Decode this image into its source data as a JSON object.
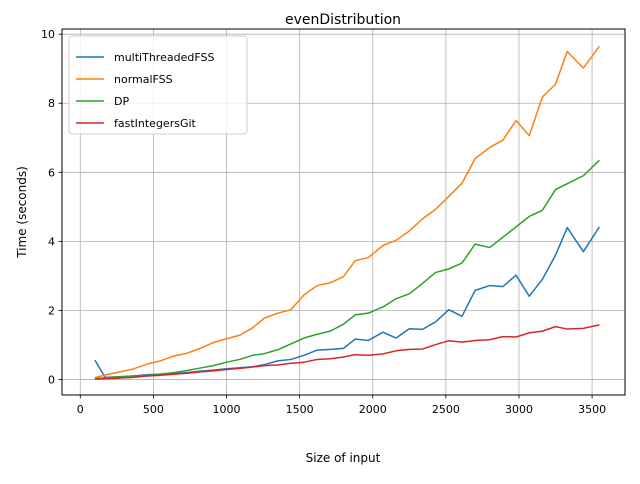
{
  "chart_data": {
    "type": "line",
    "title": "evenDistribution",
    "xlabel": "Size of input",
    "ylabel": "Time (seconds)",
    "xlim": [
      -125,
      3725
    ],
    "ylim": [
      -0.45,
      10.15
    ],
    "xticks": [
      0,
      500,
      1000,
      1500,
      2000,
      2500,
      3000,
      3500
    ],
    "yticks": [
      0,
      2,
      4,
      6,
      8,
      10
    ],
    "xtick_labels": [
      "0",
      "500",
      "1000",
      "1500",
      "2000",
      "2500",
      "3000",
      "3500"
    ],
    "ytick_labels": [
      "0",
      "2",
      "4",
      "6",
      "8",
      "10"
    ],
    "grid": true,
    "legend_position": "top-left",
    "x": [
      100,
      170,
      270,
      360,
      460,
      540,
      640,
      730,
      820,
      910,
      1000,
      1090,
      1180,
      1260,
      1350,
      1440,
      1530,
      1620,
      1710,
      1800,
      1880,
      1970,
      2070,
      2160,
      2250,
      2340,
      2430,
      2520,
      2610,
      2700,
      2800,
      2890,
      2980,
      3070,
      3160,
      3250,
      3330,
      3440,
      3550
    ],
    "series": [
      {
        "name": "multiThreadedFSS",
        "color": "#1f77b4",
        "values": [
          0.56,
          0.06,
          0.08,
          0.1,
          0.14,
          0.15,
          0.17,
          0.2,
          0.24,
          0.27,
          0.31,
          0.34,
          0.37,
          0.43,
          0.54,
          0.58,
          0.7,
          0.85,
          0.87,
          0.9,
          1.17,
          1.13,
          1.37,
          1.2,
          1.47,
          1.45,
          1.67,
          2.02,
          1.83,
          2.58,
          2.72,
          2.69,
          3.02,
          2.41,
          2.9,
          3.6,
          4.4,
          3.7,
          4.42
        ]
      },
      {
        "name": "normalFSS",
        "color": "#ff7f0e",
        "values": [
          0.05,
          0.13,
          0.22,
          0.3,
          0.45,
          0.53,
          0.68,
          0.76,
          0.9,
          1.07,
          1.18,
          1.28,
          1.5,
          1.78,
          1.92,
          2.02,
          2.45,
          2.72,
          2.8,
          2.98,
          3.44,
          3.53,
          3.88,
          4.03,
          4.3,
          4.65,
          4.93,
          5.3,
          5.68,
          6.4,
          6.72,
          6.93,
          7.5,
          7.06,
          8.18,
          8.55,
          9.5,
          9.02,
          9.65
        ]
      },
      {
        "name": "DP",
        "color": "#2ca02c",
        "values": [
          0.02,
          0.05,
          0.08,
          0.1,
          0.12,
          0.15,
          0.2,
          0.26,
          0.33,
          0.4,
          0.5,
          0.58,
          0.7,
          0.75,
          0.86,
          1.03,
          1.2,
          1.31,
          1.4,
          1.6,
          1.87,
          1.92,
          2.1,
          2.34,
          2.48,
          2.78,
          3.1,
          3.2,
          3.37,
          3.92,
          3.82,
          4.12,
          4.42,
          4.72,
          4.9,
          5.5,
          5.67,
          5.9,
          6.35
        ]
      },
      {
        "name": "fastIntegersGit",
        "color": "#d62728",
        "values": [
          0.01,
          0.02,
          0.04,
          0.06,
          0.1,
          0.12,
          0.15,
          0.18,
          0.22,
          0.25,
          0.29,
          0.32,
          0.36,
          0.4,
          0.42,
          0.47,
          0.5,
          0.58,
          0.6,
          0.65,
          0.72,
          0.7,
          0.74,
          0.83,
          0.87,
          0.88,
          1.01,
          1.12,
          1.08,
          1.13,
          1.15,
          1.24,
          1.23,
          1.35,
          1.4,
          1.53,
          1.46,
          1.48,
          1.58
        ]
      }
    ]
  }
}
